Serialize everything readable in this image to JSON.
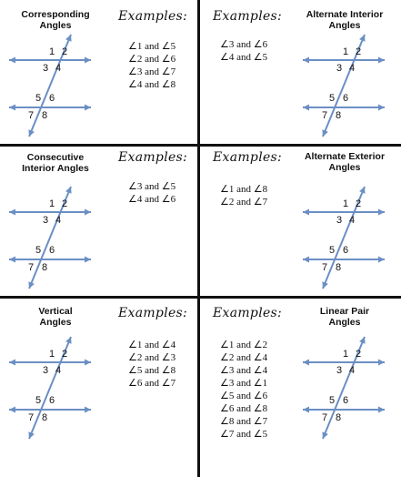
{
  "panels": [
    {
      "title_line1": "Corresponding",
      "title_line2": "Angles",
      "examples_label": "Examples:",
      "examples": [
        "∠1 and ∠5",
        "∠2 and ∠6",
        "∠3 and ∠7",
        "∠4 and ∠8"
      ]
    },
    {
      "title_line1": "Alternate Interior",
      "title_line2": "Angles",
      "examples_label": "Examples:",
      "examples": [
        "∠3 and ∠6",
        "∠4 and ∠5"
      ]
    },
    {
      "title_line1": "Consecutive",
      "title_line2": "Interior Angles",
      "examples_label": "Examples:",
      "examples": [
        "∠3 and ∠5",
        "∠4 and ∠6"
      ]
    },
    {
      "title_line1": "Alternate Exterior",
      "title_line2": "Angles",
      "examples_label": "Examples:",
      "examples": [
        "∠1 and ∠8",
        "∠2 and ∠7"
      ]
    },
    {
      "title_line1": "Vertical",
      "title_line2": "Angles",
      "examples_label": "Examples:",
      "examples": [
        "∠1 and ∠4",
        "∠2 and ∠3",
        "∠5 and ∠8",
        "∠6 and ∠7"
      ]
    },
    {
      "title_line1": "Linear Pair",
      "title_line2": "Angles",
      "examples_label": "Examples:",
      "examples": [
        "∠1 and ∠2",
        "∠2 and ∠4",
        "∠3 and ∠4",
        "∠3 and ∠1",
        "∠5 and ∠6",
        "∠6 and ∠8",
        "∠8 and ∠7",
        "∠7 and ∠5"
      ]
    }
  ],
  "angle_numbers": [
    "1",
    "2",
    "3",
    "4",
    "5",
    "6",
    "7",
    "8"
  ],
  "colors": {
    "line": "#6b8fc4",
    "grid": "#111111"
  }
}
